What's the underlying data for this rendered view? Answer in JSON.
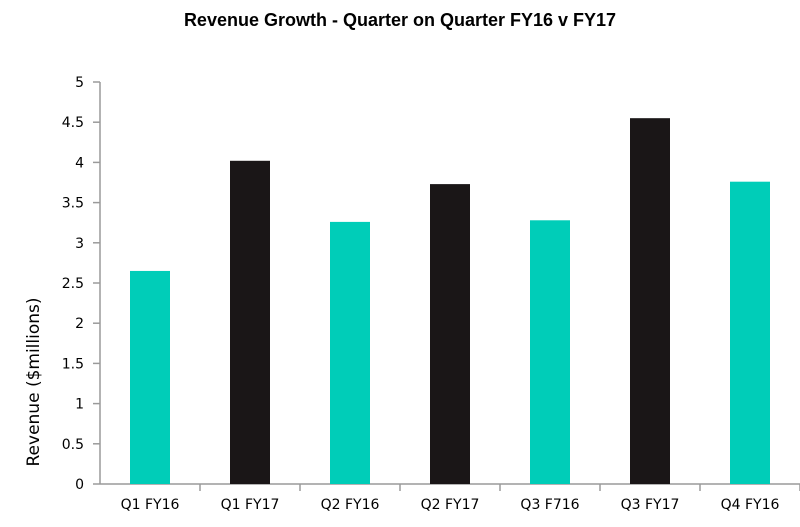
{
  "chart_data": {
    "type": "bar",
    "title": "Revenue Growth - Quarter on Quarter FY16 v FY17",
    "xlabel": "",
    "ylabel": "Revenue ($millions)",
    "ylim": [
      0,
      5
    ],
    "yticks": [
      "0",
      "0.5",
      "1",
      "1.5",
      "2",
      "2.5",
      "3",
      "3.5",
      "4",
      "4.5",
      "5"
    ],
    "grid": false,
    "categories": [
      "Q1 FY16",
      "Q1 FY17",
      "Q2 FY16",
      "Q2 FY17",
      "Q3 F716",
      "Q3 FY17",
      "Q4 FY16"
    ],
    "values": [
      2.65,
      4.02,
      3.26,
      3.73,
      3.28,
      4.55,
      3.76
    ],
    "bar_colors": [
      "#00cdb8",
      "#1a1617",
      "#00cdb8",
      "#1a1617",
      "#00cdb8",
      "#1a1617",
      "#00cdb8"
    ]
  }
}
